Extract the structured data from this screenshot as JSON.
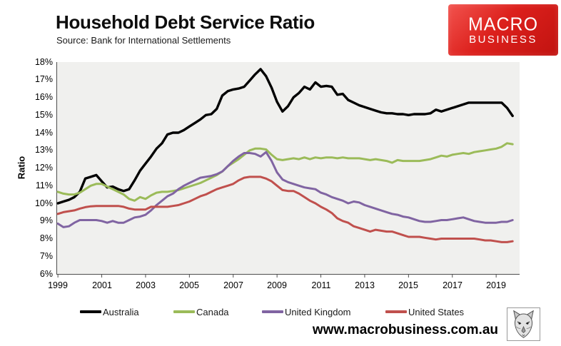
{
  "header": {
    "title": "Household Debt Service Ratio",
    "subtitle": "Source: Bank for International Settlements",
    "logo_line1": "MACRO",
    "logo_line2": "BUSINESS",
    "logo_color": "#d7201d"
  },
  "footer": {
    "url": "www.macrobusiness.com.au",
    "wolf_icon": "wolf-logo"
  },
  "chart_data": {
    "type": "line",
    "title": "Household Debt Service Ratio",
    "xlabel": "",
    "ylabel": "Ratio",
    "ylim": [
      6,
      18
    ],
    "xlim": [
      1998.93,
      2020.07
    ],
    "grid": false,
    "plot_bg": "#f0f0ee",
    "axis_color": "#4d4d4d",
    "legend_position": "bottom",
    "ytick_labels": [
      "18%",
      "17%",
      "16%",
      "15%",
      "14%",
      "13%",
      "12%",
      "11%",
      "10%",
      "9%",
      "8%",
      "7%",
      "6%"
    ],
    "xtick_labels": [
      "1999",
      "2001",
      "2003",
      "2005",
      "2007",
      "2009",
      "2011",
      "2013",
      "2015",
      "2017",
      "2019"
    ],
    "x_start": 1999.0,
    "x_step": 0.25,
    "x_end": 2019.75,
    "x_unit": "year (quarterly)",
    "series": [
      {
        "name": "Australia",
        "color": "#000000",
        "values": [
          10.0,
          10.1,
          10.2,
          10.35,
          10.65,
          11.4,
          11.5,
          11.6,
          11.25,
          10.9,
          10.95,
          10.8,
          10.7,
          10.8,
          11.3,
          11.85,
          12.25,
          12.65,
          13.1,
          13.4,
          13.9,
          14.0,
          14.0,
          14.15,
          14.35,
          14.55,
          14.75,
          15.0,
          15.05,
          15.35,
          16.1,
          16.35,
          16.45,
          16.5,
          16.6,
          16.95,
          17.3,
          17.6,
          17.2,
          16.55,
          15.75,
          15.2,
          15.5,
          16.0,
          16.25,
          16.6,
          16.45,
          16.85,
          16.6,
          16.65,
          16.6,
          16.15,
          16.2,
          15.85,
          15.7,
          15.55,
          15.45,
          15.35,
          15.25,
          15.15,
          15.1,
          15.1,
          15.05,
          15.05,
          15.0,
          15.05,
          15.05,
          15.05,
          15.1,
          15.3,
          15.2,
          15.3,
          15.4,
          15.5,
          15.6,
          15.7,
          15.7,
          15.7,
          15.7,
          15.7,
          15.7,
          15.7,
          15.4,
          14.95
        ]
      },
      {
        "name": "Canada",
        "color": "#9bbb59",
        "values": [
          10.65,
          10.55,
          10.5,
          10.5,
          10.6,
          10.8,
          11.0,
          11.1,
          11.1,
          10.95,
          10.8,
          10.65,
          10.5,
          10.25,
          10.15,
          10.35,
          10.25,
          10.45,
          10.6,
          10.65,
          10.65,
          10.7,
          10.75,
          10.85,
          10.95,
          11.05,
          11.15,
          11.3,
          11.45,
          11.6,
          11.8,
          12.1,
          12.3,
          12.5,
          12.75,
          13.0,
          13.1,
          13.1,
          13.05,
          12.75,
          12.5,
          12.45,
          12.5,
          12.55,
          12.5,
          12.6,
          12.5,
          12.6,
          12.55,
          12.6,
          12.6,
          12.55,
          12.6,
          12.55,
          12.55,
          12.55,
          12.5,
          12.45,
          12.5,
          12.45,
          12.4,
          12.3,
          12.45,
          12.4,
          12.4,
          12.4,
          12.4,
          12.45,
          12.5,
          12.6,
          12.7,
          12.65,
          12.75,
          12.8,
          12.85,
          12.8,
          12.9,
          12.95,
          13.0,
          13.05,
          13.1,
          13.2,
          13.4,
          13.35
        ]
      },
      {
        "name": "United Kingdom",
        "color": "#8064a2",
        "values": [
          8.85,
          8.65,
          8.7,
          8.9,
          9.05,
          9.05,
          9.05,
          9.05,
          9.0,
          8.9,
          9.0,
          8.9,
          8.9,
          9.05,
          9.2,
          9.25,
          9.35,
          9.6,
          9.9,
          10.15,
          10.4,
          10.55,
          10.8,
          11.0,
          11.15,
          11.3,
          11.45,
          11.5,
          11.55,
          11.65,
          11.8,
          12.1,
          12.4,
          12.65,
          12.85,
          12.85,
          12.8,
          12.65,
          12.9,
          12.4,
          11.75,
          11.35,
          11.2,
          11.1,
          11.0,
          10.9,
          10.85,
          10.8,
          10.6,
          10.5,
          10.35,
          10.25,
          10.15,
          10.0,
          10.1,
          10.05,
          9.9,
          9.8,
          9.7,
          9.6,
          9.5,
          9.4,
          9.35,
          9.25,
          9.2,
          9.1,
          9.0,
          8.95,
          8.95,
          9.0,
          9.05,
          9.05,
          9.1,
          9.15,
          9.2,
          9.1,
          9.0,
          8.95,
          8.9,
          8.9,
          8.9,
          8.95,
          8.95,
          9.05
        ]
      },
      {
        "name": "United States",
        "color": "#c0504d",
        "values": [
          9.4,
          9.5,
          9.55,
          9.6,
          9.7,
          9.78,
          9.83,
          9.85,
          9.85,
          9.85,
          9.85,
          9.85,
          9.8,
          9.7,
          9.65,
          9.65,
          9.65,
          9.8,
          9.8,
          9.8,
          9.8,
          9.85,
          9.9,
          10.0,
          10.1,
          10.25,
          10.4,
          10.5,
          10.65,
          10.8,
          10.9,
          11.0,
          11.1,
          11.3,
          11.45,
          11.5,
          11.5,
          11.5,
          11.4,
          11.25,
          11.0,
          10.75,
          10.7,
          10.7,
          10.55,
          10.35,
          10.15,
          10.0,
          9.8,
          9.65,
          9.45,
          9.15,
          9.0,
          8.9,
          8.7,
          8.6,
          8.5,
          8.4,
          8.5,
          8.45,
          8.4,
          8.4,
          8.3,
          8.2,
          8.1,
          8.1,
          8.1,
          8.05,
          8.0,
          7.95,
          8.0,
          8.0,
          8.0,
          8.0,
          8.0,
          8.0,
          8.0,
          7.95,
          7.9,
          7.9,
          7.85,
          7.8,
          7.8,
          7.85
        ]
      }
    ]
  }
}
